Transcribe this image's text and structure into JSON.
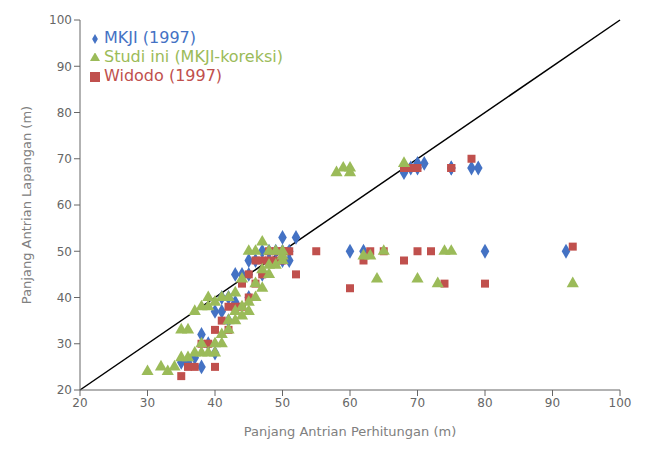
{
  "chart_data": {
    "type": "scatter",
    "xlabel": "Panjang Antrian Perhitungan (m)",
    "ylabel": "Panjang Antrian Lapangan (m)",
    "xlim": [
      20,
      100
    ],
    "ylim": [
      20,
      100
    ],
    "xticks": [
      20,
      30,
      40,
      50,
      60,
      70,
      80,
      90,
      100
    ],
    "yticks": [
      20,
      30,
      40,
      50,
      60,
      70,
      80,
      90,
      100
    ],
    "grid": false,
    "legend": "upper left",
    "reference_line": {
      "x": [
        20,
        100
      ],
      "y": [
        20,
        100
      ],
      "color": "black"
    },
    "series": [
      {
        "name": "MKJI (1997)",
        "color": "#4472C4",
        "marker": "diamond",
        "x": [
          35,
          36,
          37,
          38,
          38,
          39,
          40,
          40,
          41,
          41,
          42,
          42,
          43,
          43,
          44,
          45,
          45,
          45,
          46,
          47,
          47,
          48,
          48,
          49,
          50,
          50,
          50,
          51,
          51,
          52,
          60,
          62,
          68,
          68,
          69,
          70,
          70,
          71,
          75,
          75,
          78,
          79,
          80,
          92
        ],
        "y": [
          26,
          26,
          27,
          25,
          32,
          30,
          28,
          37,
          37,
          40,
          35,
          40,
          39,
          45,
          45,
          40,
          45,
          48,
          48,
          45,
          50,
          48,
          50,
          50,
          48,
          50,
          53,
          50,
          48,
          53,
          50,
          50,
          67,
          68,
          68,
          68,
          69,
          69,
          68,
          68,
          68,
          68,
          50,
          50
        ]
      },
      {
        "name": "Widodo (1997)",
        "color": "#C0504D",
        "marker": "square",
        "x": [
          35,
          36,
          37,
          38,
          39,
          40,
          40,
          41,
          42,
          42,
          43,
          44,
          44,
          45,
          45,
          46,
          46,
          47,
          47,
          48,
          48,
          49,
          49,
          50,
          50,
          50,
          51,
          52,
          55,
          60,
          62,
          63,
          65,
          68,
          68,
          69,
          70,
          70,
          72,
          74,
          75,
          75,
          78,
          80,
          93
        ],
        "y": [
          23,
          25,
          25,
          30,
          30,
          25,
          33,
          35,
          33,
          38,
          38,
          38,
          43,
          40,
          45,
          43,
          48,
          45,
          48,
          48,
          50,
          48,
          50,
          48,
          50,
          50,
          50,
          45,
          50,
          42,
          48,
          50,
          50,
          48,
          68,
          68,
          50,
          68,
          50,
          43,
          68,
          68,
          70,
          43,
          51
        ]
      },
      {
        "name": "Studi ini (MKJI-koreksi)",
        "color": "#9BBB59",
        "marker": "triangle",
        "x": [
          30,
          32,
          33,
          34,
          35,
          35,
          36,
          36,
          37,
          37,
          38,
          38,
          38,
          39,
          39,
          39,
          40,
          40,
          40,
          41,
          41,
          41,
          42,
          42,
          42,
          43,
          43,
          43,
          44,
          44,
          44,
          45,
          45,
          45,
          46,
          46,
          46,
          47,
          47,
          47,
          48,
          48,
          48,
          49,
          49,
          50,
          50,
          50,
          58,
          59,
          60,
          60,
          62,
          63,
          64,
          65,
          68,
          70,
          73,
          74,
          75,
          93
        ],
        "y": [
          24,
          25,
          24,
          25,
          27,
          33,
          27,
          33,
          28,
          37,
          28,
          30,
          38,
          28,
          38,
          40,
          28,
          30,
          39,
          30,
          32,
          40,
          33,
          35,
          40,
          35,
          37,
          41,
          36,
          38,
          44,
          37,
          39,
          50,
          40,
          43,
          50,
          42,
          46,
          52,
          45,
          47,
          50,
          47,
          50,
          48,
          49,
          50,
          67,
          68,
          67,
          68,
          49,
          49,
          44,
          50,
          69,
          44,
          43,
          50,
          50,
          43
        ]
      }
    ]
  }
}
